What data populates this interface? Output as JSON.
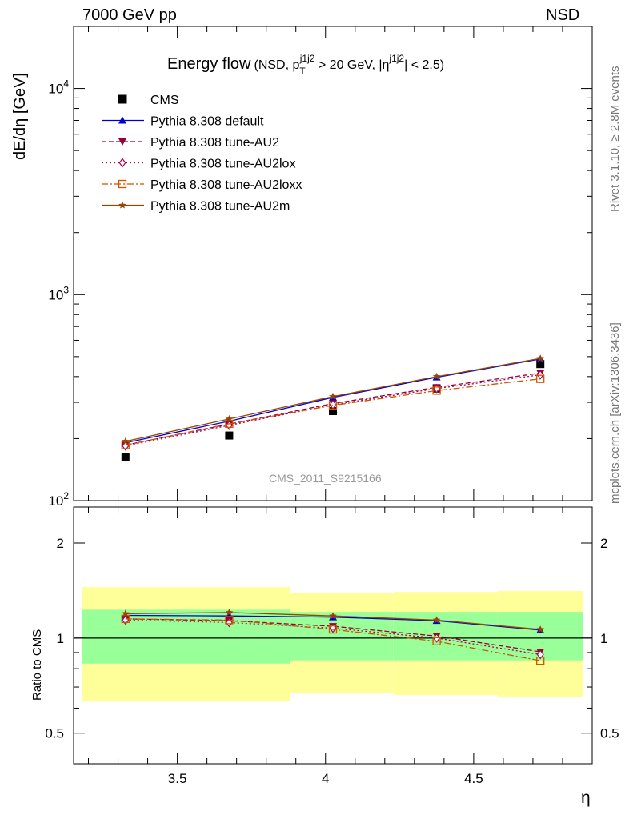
{
  "header": {
    "left": "7000 GeV pp",
    "right": "NSD"
  },
  "side_notes": {
    "rivet": "Rivet 3.1.10, ≥ 2.8M events",
    "mcplots": "mcplots.cern.ch [arXiv:1306.3436]"
  },
  "analysis_id": "CMS_2011_S9215166",
  "chart_data": [
    {
      "type": "line",
      "title": "Energy flow",
      "title_suffix_parts": [
        "(NSD, p",
        "T",
        "j1j2",
        " > 20 GeV, |η",
        "j1j2",
        "| < 2.5)"
      ],
      "ylabel": "dE/dη [GeV]",
      "xlabel": "η",
      "yscale": "log",
      "xlim": [
        3.15,
        4.9
      ],
      "ylim": [
        100,
        20000
      ],
      "y_tick_labels": [
        {
          "value": 100,
          "base": "10",
          "exp": "2"
        },
        {
          "value": 1000,
          "base": "10",
          "exp": "3"
        },
        {
          "value": 10000,
          "base": "10",
          "exp": "4"
        }
      ],
      "legend_position": "top-left",
      "x": [
        3.325,
        3.675,
        4.025,
        4.375,
        4.725
      ],
      "series": [
        {
          "name": "CMS",
          "color": "#000000",
          "marker": "square",
          "dash": "none",
          "values": [
            162,
            207,
            272,
            350,
            460
          ]
        },
        {
          "name": "Pythia 8.308 default",
          "color": "#0000cc",
          "marker": "triangle",
          "dash": "solid",
          "values": [
            191,
            243,
            317,
            397,
            487
          ]
        },
        {
          "name": "Pythia 8.308 tune-AU2",
          "color": "#990033",
          "marker": "triangle-down",
          "dash": "dashed",
          "values": [
            186,
            235,
            296,
            355,
            416
          ]
        },
        {
          "name": "Pythia 8.308 tune-AU2lox",
          "color": "#aa0055",
          "marker": "diamond",
          "dash": "dotted",
          "values": [
            184,
            232,
            292,
            350,
            408
          ]
        },
        {
          "name": "Pythia 8.308 tune-AU2loxx",
          "color": "#cc5500",
          "marker": "square-open",
          "dash": "dashdot",
          "values": [
            186,
            236,
            290,
            342,
            390
          ]
        },
        {
          "name": "Pythia 8.308 tune-AU2m",
          "color": "#994400",
          "marker": "star",
          "dash": "solid",
          "values": [
            194,
            249,
            320,
            400,
            490
          ]
        }
      ]
    },
    {
      "type": "line",
      "ylabel": "Ratio to CMS",
      "xlabel": "η",
      "yscale": "log",
      "xlim": [
        3.15,
        4.9
      ],
      "ylim": [
        0.4,
        2.6
      ],
      "y_tick_labels": [
        {
          "value": 0.5,
          "label": "0.5"
        },
        {
          "value": 1,
          "label": "1"
        },
        {
          "value": 2,
          "label": "2"
        }
      ],
      "x_tick_labels": [
        {
          "value": 3.5,
          "label": "3.5"
        },
        {
          "value": 4.0,
          "label": "4"
        },
        {
          "value": 4.5,
          "label": "4.5"
        }
      ],
      "bands": {
        "bin_edges": [
          3.15,
          3.5,
          3.85,
          4.2,
          4.55,
          4.9
        ],
        "stat": {
          "color": "#99ff99",
          "lower": [
            0.83,
            0.83,
            0.85,
            0.85,
            0.85
          ],
          "upper": [
            1.23,
            1.23,
            1.21,
            1.21,
            1.21
          ]
        },
        "total": {
          "color": "#ffff99",
          "lower": [
            0.63,
            0.63,
            0.67,
            0.66,
            0.65
          ],
          "upper": [
            1.45,
            1.45,
            1.39,
            1.4,
            1.41
          ]
        }
      },
      "x": [
        3.325,
        3.675,
        4.025,
        4.375,
        4.725
      ],
      "series": [
        {
          "name": "Pythia 8.308 default",
          "color": "#0000cc",
          "marker": "triangle",
          "dash": "solid",
          "values": [
            1.18,
            1.175,
            1.165,
            1.135,
            1.06
          ]
        },
        {
          "name": "Pythia 8.308 tune-AU2",
          "color": "#990033",
          "marker": "triangle-down",
          "dash": "dashed",
          "values": [
            1.15,
            1.135,
            1.09,
            1.015,
            0.905
          ]
        },
        {
          "name": "Pythia 8.308 tune-AU2lox",
          "color": "#aa0055",
          "marker": "diamond",
          "dash": "dotted",
          "values": [
            1.14,
            1.12,
            1.075,
            1.0,
            0.887
          ]
        },
        {
          "name": "Pythia 8.308 tune-AU2loxx",
          "color": "#cc5500",
          "marker": "square-open",
          "dash": "dashdot",
          "values": [
            1.15,
            1.14,
            1.065,
            0.977,
            0.848
          ]
        },
        {
          "name": "Pythia 8.308 tune-AU2m",
          "color": "#994400",
          "marker": "star",
          "dash": "solid",
          "values": [
            1.195,
            1.205,
            1.175,
            1.14,
            1.065
          ]
        }
      ]
    }
  ]
}
